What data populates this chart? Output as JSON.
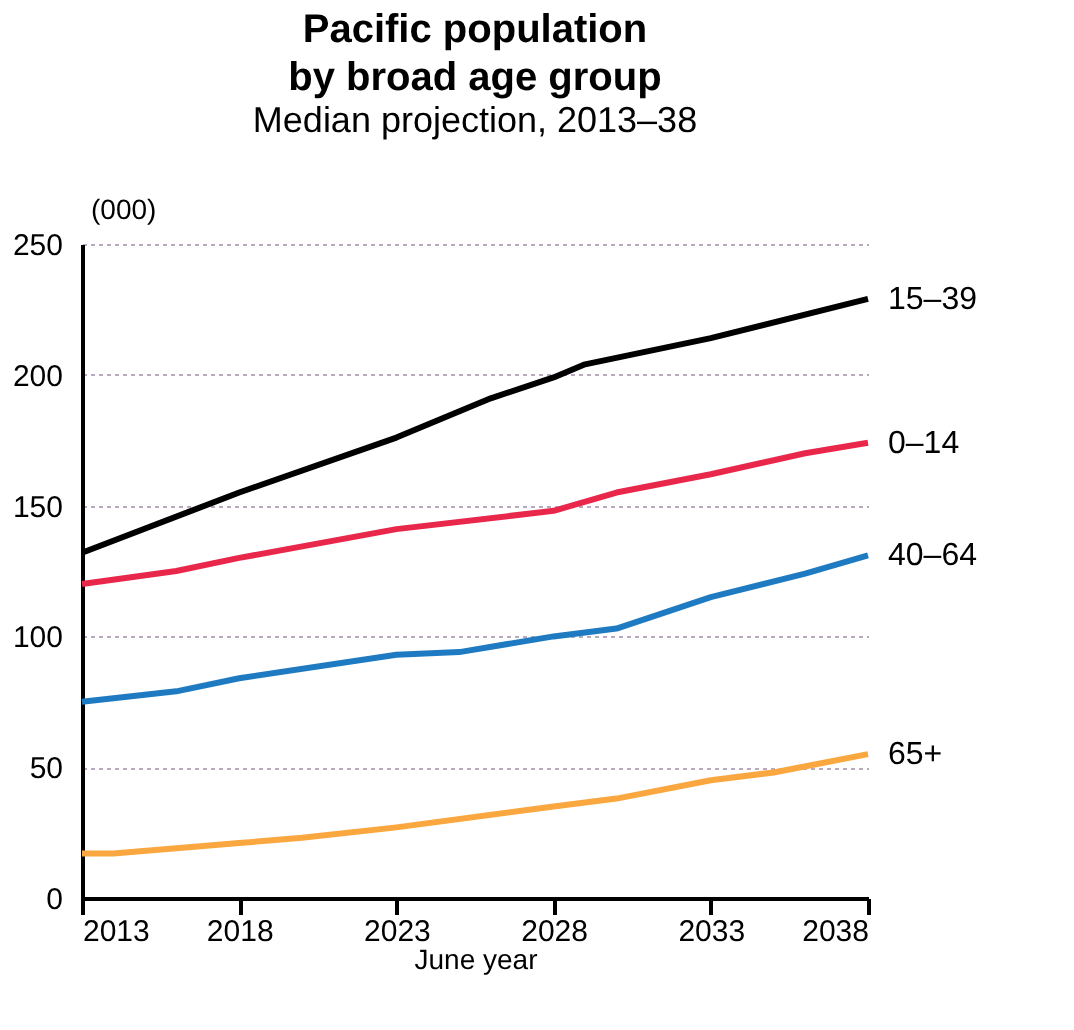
{
  "chart_data": {
    "type": "line",
    "title": "Pacific population by broad age group",
    "subtitle": "Median projection, 2013–38",
    "ylabel": "(000)",
    "xlabel": "June year",
    "xlim": [
      2013,
      2038
    ],
    "xticks": [
      2013,
      2018,
      2023,
      2028,
      2033,
      2038
    ],
    "ylim": [
      0,
      250
    ],
    "yticks": [
      0,
      50,
      100,
      150,
      200,
      250
    ],
    "grid": "y",
    "legend": false,
    "series": [
      {
        "name": "15–39",
        "color": "#000000",
        "x": [
          2013,
          2018,
          2023,
          2026,
          2028,
          2029,
          2033,
          2038
        ],
        "values": [
          132,
          155,
          176,
          191,
          199,
          204,
          214,
          229
        ]
      },
      {
        "name": "0–14",
        "color": "#e8274b",
        "x": [
          2013,
          2016,
          2018,
          2023,
          2028,
          2030,
          2033,
          2036,
          2038
        ],
        "values": [
          120,
          125,
          130,
          141,
          148,
          155,
          162,
          170,
          174
        ]
      },
      {
        "name": "40–64",
        "color": "#1f7bc1",
        "x": [
          2013,
          2016,
          2018,
          2023,
          2025,
          2028,
          2030,
          2033,
          2036,
          2038
        ],
        "values": [
          75,
          79,
          84,
          93,
          94,
          100,
          103,
          115,
          124,
          131
        ]
      },
      {
        "name": "65+",
        "color": "#f9a73e",
        "x": [
          2013,
          2014,
          2016,
          2018,
          2020,
          2023,
          2028,
          2030,
          2033,
          2035,
          2038
        ],
        "values": [
          17,
          17,
          19,
          21,
          23,
          27,
          35,
          38,
          45,
          48,
          55
        ]
      }
    ]
  }
}
